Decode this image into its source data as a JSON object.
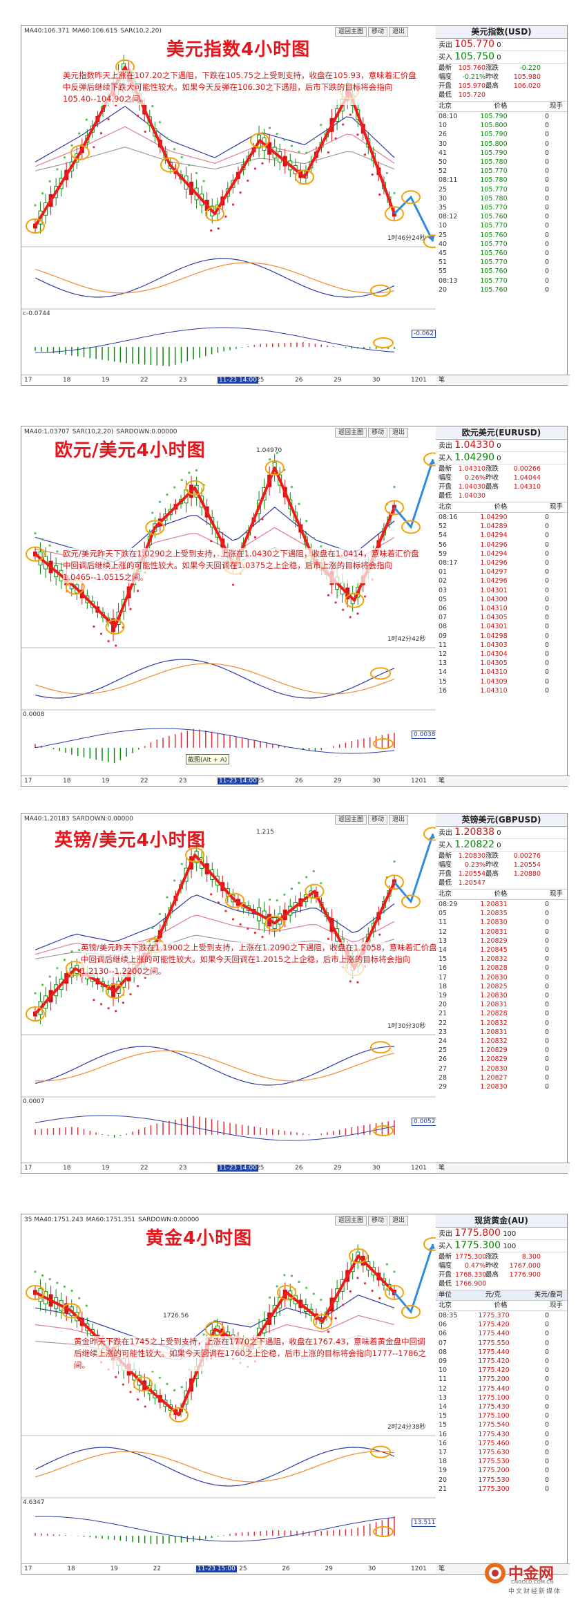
{
  "panels": [
    {
      "title": "美元指数4小时图",
      "topbar": [
        "MA40:106.371",
        "MA60:106.615",
        "SAR(10,2,20)"
      ],
      "buttons": [
        "返回主图",
        "移动",
        "退出"
      ],
      "description": "美元指数昨天上涨在107.20之下遇阻，下跌在105.75之上受到支持，收盘在105.93，意味着汇价盘中反弹后继续下跌大可能性较大。如果今天反弹在106.30之下遇阻，后市下跌的目标将会指向105.40--104.90之间。",
      "countdown": "1时46分24秒",
      "macd_label": "c-0.0744",
      "macd_value": "-0.062",
      "dates": [
        "17",
        "18",
        "19",
        "22",
        "23",
        "11-23 14:00",
        "25",
        "26",
        "29",
        "30",
        "1201"
      ],
      "quote": {
        "title": "美元指数(USD)",
        "sell_label": "卖出",
        "sell": "105.770",
        "sell_vol": "0",
        "buy_label": "买入",
        "buy": "105.750",
        "buy_vol": "0",
        "stats": [
          [
            "最新",
            "105.760",
            "涨跌",
            "-0.220"
          ],
          [
            "幅度",
            "-0.21%",
            "昨收",
            "105.980"
          ],
          [
            "开盘",
            "105.970",
            "最高",
            "106.020"
          ],
          [
            "最低",
            "105.720",
            "",
            ""
          ]
        ],
        "tick_header": [
          "北京",
          "价格",
          "现手"
        ],
        "ticks": [
          [
            "08:10",
            "105.790",
            "0"
          ],
          [
            "10",
            "105.800",
            "0"
          ],
          [
            "26",
            "105.790",
            "0"
          ],
          [
            "30",
            "105.800",
            "0"
          ],
          [
            "41",
            "105.790",
            "0"
          ],
          [
            "50",
            "105.780",
            "0"
          ],
          [
            "52",
            "105.770",
            "0"
          ],
          [
            "08:11",
            "105.780",
            "0"
          ],
          [
            "25",
            "105.770",
            "0"
          ],
          [
            "30",
            "105.780",
            "0"
          ],
          [
            "35",
            "105.770",
            "0"
          ],
          [
            "08:12",
            "105.760",
            "0"
          ],
          [
            "10",
            "105.770",
            "0"
          ],
          [
            "25",
            "105.760",
            "0"
          ],
          [
            "40",
            "105.770",
            "0"
          ],
          [
            "45",
            "105.760",
            "0"
          ],
          [
            "51",
            "105.770",
            "0"
          ],
          [
            "55",
            "105.760",
            "0"
          ],
          [
            "08:13",
            "105.770",
            "0"
          ],
          [
            "20",
            "105.760",
            "0"
          ]
        ],
        "footer": "笔"
      }
    },
    {
      "title": "欧元/美元4小时图",
      "topbar": [
        "MA40:1.03707",
        "SAR(10,2,20)",
        "SARDOWN:0.00000"
      ],
      "buttons": [
        "返回主图",
        "移动",
        "退出"
      ],
      "description": "欧元/美元昨天下跌在1.0290之上受到支持，上涨在1.0430之下遇阻，收盘在1.0414，意味着汇价盘中回调后继续上涨的可能性较大。如果今天回调在1.0375之上企稳，后市上涨的目标将会指向1.0465--1.0515之间。",
      "peak_label": "1.04970",
      "countdown": "1时42分42秒",
      "macd_label": "0.0008",
      "macd_value": "0.00387",
      "tooltip": "截图(Alt + A)",
      "dates": [
        "17",
        "18",
        "19",
        "22",
        "23",
        "11-23 14:00",
        "25",
        "26",
        "29",
        "30",
        "1201"
      ],
      "quote": {
        "title": "欧元美元(EURUSD)",
        "sell_label": "卖出",
        "sell": "1.04330",
        "sell_vol": "0",
        "buy_label": "买入",
        "buy": "1.04290",
        "buy_vol": "0",
        "stats": [
          [
            "最新",
            "1.04310",
            "涨跌",
            "0.00266"
          ],
          [
            "幅度",
            "0.26%",
            "昨收",
            "1.04044"
          ],
          [
            "开盘",
            "1.04030",
            "最高",
            "1.04310"
          ],
          [
            "最低",
            "1.04030",
            "",
            ""
          ]
        ],
        "tick_header": [
          "北京",
          "价格",
          "现手"
        ],
        "ticks": [
          [
            "08:16",
            "1.04290",
            "0"
          ],
          [
            "52",
            "1.04289",
            "0"
          ],
          [
            "54",
            "1.04294",
            "0"
          ],
          [
            "56",
            "1.04296",
            "0"
          ],
          [
            "59",
            "1.04294",
            "0"
          ],
          [
            "08:17",
            "1.04296",
            "0"
          ],
          [
            "01",
            "1.04297",
            "0"
          ],
          [
            "02",
            "1.04296",
            "0"
          ],
          [
            "03",
            "1.04301",
            "0"
          ],
          [
            "05",
            "1.04300",
            "0"
          ],
          [
            "06",
            "1.04310",
            "0"
          ],
          [
            "07",
            "1.04305",
            "0"
          ],
          [
            "08",
            "1.04301",
            "0"
          ],
          [
            "09",
            "1.04298",
            "0"
          ],
          [
            "11",
            "1.04303",
            "0"
          ],
          [
            "12",
            "1.04304",
            "0"
          ],
          [
            "13",
            "1.04305",
            "0"
          ],
          [
            "14",
            "1.04310",
            "0"
          ],
          [
            "15",
            "1.04309",
            "0"
          ],
          [
            "16",
            "1.04310",
            "0"
          ]
        ],
        "footer": "笔"
      }
    },
    {
      "title": "英镑/美元4小时图",
      "topbar": [
        "MA40:1.20183",
        "SARDOWN:0.00000"
      ],
      "buttons": [
        "返回主图",
        "移动",
        "退出"
      ],
      "description": "英镑/美元昨天下跌在1.1900之上受到支持，上涨在1.2090之下遇阻，收盘在1.2058，意味着汇价盘中回调后继续上涨的可能性较大。如果今天回调在1.2015之上企稳，后市上涨的目标将会指向1.2130--1.2200之间。",
      "peak_label": "1.215",
      "countdown": "1时30分30秒",
      "macd_label": "0.0007",
      "macd_value": "0.00526",
      "dates": [
        "17",
        "18",
        "19",
        "22",
        "23",
        "11-23 14:00",
        "25",
        "26",
        "29",
        "30",
        "1201"
      ],
      "quote": {
        "title": "英镑美元(GBPUSD)",
        "sell_label": "卖出",
        "sell": "1.20838",
        "sell_vol": "0",
        "buy_label": "买入",
        "buy": "1.20822",
        "buy_vol": "0",
        "stats": [
          [
            "最新",
            "1.20830",
            "涨跌",
            "0.00276"
          ],
          [
            "幅度",
            "0.23%",
            "昨收",
            "1.20554"
          ],
          [
            "开盘",
            "1.20554",
            "最高",
            "1.20880"
          ],
          [
            "最低",
            "1.20547",
            "",
            ""
          ]
        ],
        "tick_header": [
          "北京",
          "价格",
          "现手"
        ],
        "ticks": [
          [
            "08:29",
            "1.20831",
            "0"
          ],
          [
            "05",
            "1.20835",
            "0"
          ],
          [
            "11",
            "1.20830",
            "0"
          ],
          [
            "12",
            "1.20831",
            "0"
          ],
          [
            "13",
            "1.20829",
            "0"
          ],
          [
            "14",
            "1.20845",
            "0"
          ],
          [
            "15",
            "1.20832",
            "0"
          ],
          [
            "16",
            "1.20828",
            "0"
          ],
          [
            "17",
            "1.20830",
            "0"
          ],
          [
            "18",
            "1.20825",
            "0"
          ],
          [
            "19",
            "1.20830",
            "0"
          ],
          [
            "20",
            "1.20831",
            "0"
          ],
          [
            "21",
            "1.20828",
            "0"
          ],
          [
            "22",
            "1.20832",
            "0"
          ],
          [
            "23",
            "1.20831",
            "0"
          ],
          [
            "24",
            "1.20832",
            "0"
          ],
          [
            "25",
            "1.20829",
            "0"
          ],
          [
            "26",
            "1.20829",
            "0"
          ],
          [
            "27",
            "1.20830",
            "0"
          ],
          [
            "28",
            "1.20827",
            "0"
          ],
          [
            "29",
            "1.20830",
            "0"
          ]
        ],
        "footer": "笔"
      }
    },
    {
      "title": "黄金4小时图",
      "topbar": [
        "35 MA40:1751.243",
        "MA60:1751.351",
        "SARDOWN:0.00000"
      ],
      "buttons": [
        "返回主图",
        "移动",
        "退出"
      ],
      "description": "黄金昨天下跌在1745之上受到支持，上涨在1770之下遇阻，收盘在1767.43，意味着黄金盘中回调后继续上涨的可能性较大。如果今天回调在1760之上企稳，后市上涨的目标将会指向1777--1786之间。",
      "low_label": "1726.56",
      "countdown": "2时24分38秒",
      "macd_label": "4.6347",
      "macd_value": "13.511",
      "dates": [
        "17",
        "18",
        "19",
        "22",
        "11-23 15:00",
        "25",
        "26",
        "29",
        "30",
        "1201"
      ],
      "quote": {
        "title": "现货黄金(AU)",
        "sell_label": "卖出",
        "sell": "1775.800",
        "sell_vol": "100",
        "buy_label": "买入",
        "buy": "1775.300",
        "buy_vol": "100",
        "stats": [
          [
            "最新",
            "1775.300",
            "涨跌",
            "8.300"
          ],
          [
            "幅度",
            "0.47%",
            "昨收",
            "1767.000"
          ],
          [
            "开盘",
            "1768.330",
            "最高",
            "1776.900"
          ],
          [
            "最低",
            "1766.900",
            "",
            ""
          ]
        ],
        "unit_row": [
          "单位",
          "元/克",
          "美元/盎司"
        ],
        "tick_header": [
          "北京",
          "价格",
          "现手"
        ],
        "ticks": [
          [
            "08:35",
            "1775.370",
            "0"
          ],
          [
            "06",
            "1775.420",
            "0"
          ],
          [
            "06",
            "1775.440",
            "0"
          ],
          [
            "07",
            "1775.550",
            "0"
          ],
          [
            "08",
            "1775.440",
            "0"
          ],
          [
            "09",
            "1775.420",
            "0"
          ],
          [
            "10",
            "1775.420",
            "0"
          ],
          [
            "11",
            "1775.200",
            "0"
          ],
          [
            "12",
            "1775.440",
            "0"
          ],
          [
            "13",
            "1775.100",
            "0"
          ],
          [
            "14",
            "1775.430",
            "0"
          ],
          [
            "15",
            "1775.100",
            "0"
          ],
          [
            "15",
            "1775.540",
            "0"
          ],
          [
            "16",
            "1775.430",
            "0"
          ],
          [
            "16",
            "1775.460",
            "0"
          ],
          [
            "17",
            "1775.630",
            "0"
          ],
          [
            "18",
            "1775.530",
            "0"
          ],
          [
            "19",
            "1775.200",
            "0"
          ],
          [
            "20",
            "1775.530",
            "0"
          ],
          [
            "21",
            "1775.300",
            "0"
          ]
        ],
        "footer": "笔"
      }
    }
  ],
  "watermark": {
    "cn": "中金网",
    "en": "CNGOLD.COM.CN",
    "sub": "中文财经新媒体"
  },
  "chart_data": [
    {
      "type": "line",
      "title": "美元指数4小时图",
      "series": [
        {
          "values": [
            105.8,
            106.4,
            107.1,
            106.3,
            105.9,
            106.5,
            106.2,
            106.9,
            105.9
          ]
        }
      ],
      "macd": [
        -0.12,
        -0.3,
        -0.5,
        -0.6,
        -0.2,
        0.1,
        0.15,
        -0.05,
        -0.062
      ],
      "colors": {
        "up": "#0a8a0a",
        "down": "#d11515",
        "trend": "#ee1b1b",
        "forecast": "#2f8ae0"
      }
    },
    {
      "type": "line",
      "title": "欧元/美元4小时图",
      "series": [
        {
          "values": [
            1.036,
            1.031,
            1.025,
            1.04,
            1.046,
            1.034,
            1.049,
            1.035,
            1.029,
            1.043
          ]
        }
      ],
      "macd": [
        0.001,
        -0.002,
        -0.004,
        0.002,
        0.005,
        0.003,
        0.001,
        -0.001,
        0.002,
        0.00387
      ]
    },
    {
      "type": "line",
      "title": "英镑/美元4小时图",
      "series": [
        {
          "values": [
            1.18,
            1.19,
            1.185,
            1.195,
            1.215,
            1.205,
            1.2,
            1.207,
            1.19,
            1.209
          ]
        }
      ],
      "macd": [
        0.002,
        0.003,
        -0.001,
        0.004,
        0.007,
        0.004,
        0.002,
        0.0,
        0.003,
        0.00526
      ]
    },
    {
      "type": "line",
      "title": "黄金4小时图",
      "series": [
        {
          "values": [
            1760,
            1755,
            1745,
            1735,
            1726.56,
            1750,
            1745,
            1760,
            1752,
            1770,
            1760
          ]
        }
      ],
      "macd": [
        2,
        0,
        -3,
        -6,
        -4,
        2,
        4,
        3,
        5,
        13.511
      ]
    }
  ]
}
